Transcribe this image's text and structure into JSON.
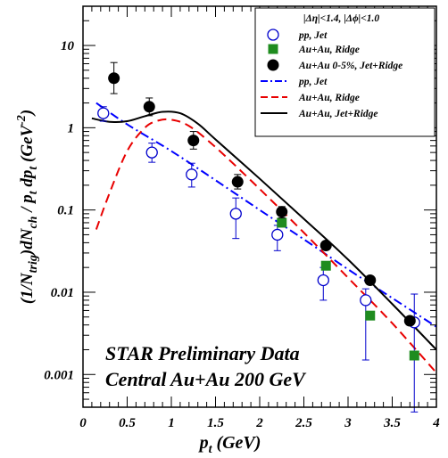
{
  "chart_data": {
    "type": "scatter",
    "xlabel": "p_t (GeV)",
    "ylabel": "(1/N_trig) dN_ch / p_t dp_t (GeV^-2)",
    "xlim": [
      0,
      4
    ],
    "ylim": [
      0.0004,
      30
    ],
    "log_y": true,
    "grid": false,
    "legend_position": "top-right",
    "x_ticks": [
      0,
      0.5,
      1,
      1.5,
      2,
      2.5,
      3,
      3.5,
      4
    ],
    "x_tick_labels": [
      "0",
      "0.5",
      "1",
      "1.5",
      "2",
      "2.5",
      "3",
      "3.5",
      "4"
    ],
    "y_ticks": [
      0.001,
      0.01,
      0.1,
      1,
      10
    ],
    "y_tick_labels": [
      "0.001",
      "0.01",
      "0.1",
      "1",
      "10"
    ],
    "legend_header": "|Δη|<1.4,     |Δϕ|<1.0",
    "annotations": [
      "STAR Preliminary Data",
      "Central Au+Au 200 GeV"
    ],
    "series": [
      {
        "name": "pp, Jet",
        "kind": "points",
        "marker": "open-circle",
        "color": "#0000cc",
        "x": [
          0.23,
          0.78,
          1.23,
          1.73,
          2.2,
          2.72,
          3.2,
          3.75
        ],
        "y": [
          1.5,
          0.5,
          0.27,
          0.09,
          0.05,
          0.014,
          0.008,
          0.0043
        ],
        "err": [
          [
            1.2,
            1.8
          ],
          [
            0.38,
            0.65
          ],
          [
            0.19,
            0.37
          ],
          [
            0.045,
            0.14
          ],
          [
            0.032,
            0.065
          ],
          [
            0.008,
            0.02
          ],
          [
            0.0015,
            0.011
          ],
          [
            0.00035,
            0.0095
          ]
        ]
      },
      {
        "name": "Au+Au, Ridge",
        "kind": "points",
        "marker": "filled-square",
        "color": "#1f8c1f",
        "x": [
          2.25,
          2.75,
          3.25,
          3.75
        ],
        "y": [
          0.07,
          0.021,
          0.0052,
          0.0017
        ],
        "err": [
          null,
          null,
          null,
          null
        ]
      },
      {
        "name": "Au+Au 0-5%, Jet+Ridge",
        "kind": "points",
        "marker": "filled-circle",
        "color": "#000000",
        "x": [
          0.35,
          0.75,
          1.25,
          1.75,
          2.25,
          2.75,
          3.25,
          3.7
        ],
        "y": [
          4.0,
          1.8,
          0.7,
          0.22,
          0.095,
          0.037,
          0.014,
          0.0045
        ],
        "err": [
          [
            2.6,
            6.2
          ],
          [
            1.4,
            2.3
          ],
          [
            0.55,
            0.9
          ],
          [
            0.18,
            0.27
          ],
          [
            0.08,
            0.11
          ],
          null,
          null,
          null
        ]
      },
      {
        "name": "pp, Jet",
        "kind": "curve",
        "style": "dash-dot",
        "color": "#0000ff",
        "x": [
          0.15,
          0.5,
          1.0,
          1.5,
          2.0,
          2.5,
          3.0,
          3.5,
          4.0
        ],
        "y": [
          2.0,
          1.1,
          0.52,
          0.23,
          0.1,
          0.044,
          0.019,
          0.0085,
          0.0038
        ]
      },
      {
        "name": "Au+Au, Ridge",
        "kind": "curve",
        "style": "dashed",
        "color": "#e80000",
        "x": [
          0.15,
          0.3,
          0.5,
          0.7,
          0.85,
          1.0,
          1.2,
          1.5,
          2.0,
          2.5,
          3.0,
          3.5,
          4.0
        ],
        "y": [
          0.058,
          0.16,
          0.52,
          1.0,
          1.22,
          1.25,
          1.05,
          0.58,
          0.18,
          0.053,
          0.015,
          0.0042,
          0.00105
        ]
      },
      {
        "name": "Au+Au, Jet+Ridge",
        "kind": "curve",
        "style": "solid",
        "color": "#000000",
        "x": [
          0.1,
          0.3,
          0.5,
          0.7,
          0.9,
          1.1,
          1.3,
          1.5,
          2.0,
          2.5,
          3.0,
          3.5,
          4.0
        ],
        "y": [
          1.3,
          1.18,
          1.2,
          1.38,
          1.56,
          1.5,
          1.12,
          0.72,
          0.24,
          0.078,
          0.025,
          0.0072,
          0.002
        ]
      }
    ]
  }
}
